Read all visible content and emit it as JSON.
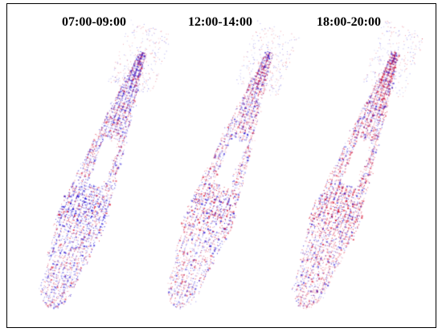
{
  "figure": {
    "panels": [
      {
        "title": "07:00-09:00",
        "blue_weight": 0.58,
        "density": 1.0
      },
      {
        "title": "12:00-14:00",
        "blue_weight": 0.46,
        "density": 0.8
      },
      {
        "title": "18:00-20:00",
        "blue_weight": 0.4,
        "density": 1.0
      }
    ],
    "colors": {
      "blue": "#2b1bd6",
      "red": "#d81e3c",
      "background": "#ffffff",
      "frame": "#000000"
    }
  }
}
